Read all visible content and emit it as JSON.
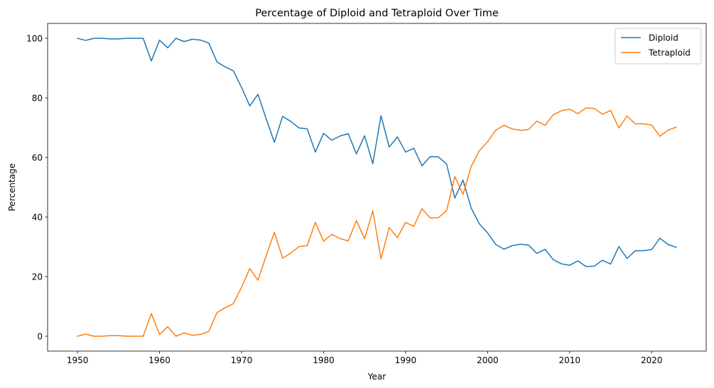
{
  "chart_data": {
    "type": "line",
    "title": "Percentage of Diploid and Tetraploid Over Time",
    "xlabel": "Year",
    "ylabel": "Percentage",
    "xlim": [
      1946.35,
      2026.65
    ],
    "ylim": [
      -5.0,
      105.0
    ],
    "xticks": [
      1950,
      1960,
      1970,
      1980,
      1990,
      2000,
      2010,
      2020
    ],
    "yticks": [
      0,
      20,
      40,
      60,
      80,
      100
    ],
    "grid": false,
    "legend": "top-right",
    "x": [
      1950,
      1951,
      1952,
      1953,
      1954,
      1955,
      1956,
      1957,
      1958,
      1959,
      1960,
      1961,
      1962,
      1963,
      1964,
      1965,
      1966,
      1967,
      1968,
      1969,
      1970,
      1971,
      1972,
      1973,
      1974,
      1975,
      1976,
      1977,
      1978,
      1979,
      1980,
      1981,
      1982,
      1983,
      1984,
      1985,
      1986,
      1987,
      1988,
      1989,
      1990,
      1991,
      1992,
      1993,
      1994,
      1995,
      1996,
      1997,
      1998,
      1999,
      2000,
      2001,
      2002,
      2003,
      2004,
      2005,
      2006,
      2007,
      2008,
      2009,
      2010,
      2011,
      2012,
      2013,
      2014,
      2015,
      2016,
      2017,
      2018,
      2019,
      2020,
      2021,
      2022,
      2023
    ],
    "series": [
      {
        "name": "Diploid",
        "color": "#1f77b4",
        "values": [
          100.0,
          99.3,
          100.0,
          100.0,
          99.8,
          99.8,
          100.0,
          100.0,
          100.0,
          92.4,
          99.4,
          96.8,
          100.0,
          98.9,
          99.7,
          99.4,
          98.4,
          92.1,
          90.4,
          89.1,
          83.5,
          77.3,
          81.2,
          73.0,
          65.1,
          73.8,
          72.1,
          69.9,
          69.6,
          61.8,
          68.1,
          65.8,
          67.2,
          68.0,
          61.2,
          67.3,
          57.9,
          74.0,
          63.5,
          66.9,
          61.8,
          63.1,
          57.2,
          60.3,
          60.2,
          57.8,
          46.4,
          52.4,
          43.0,
          37.7,
          34.7,
          30.8,
          29.2,
          30.4,
          30.9,
          30.6,
          27.8,
          29.2,
          25.7,
          24.3,
          23.8,
          25.3,
          23.4,
          23.5,
          25.5,
          24.2,
          30.1,
          26.1,
          28.7,
          28.7,
          29.1,
          32.9,
          30.8,
          29.8
        ]
      },
      {
        "name": "Tetraploid",
        "color": "#ff7f0e",
        "values": [
          0.0,
          0.7,
          0.0,
          0.0,
          0.2,
          0.2,
          0.0,
          0.0,
          0.0,
          7.6,
          0.6,
          3.2,
          0.0,
          1.1,
          0.3,
          0.6,
          1.6,
          7.9,
          9.6,
          10.9,
          16.5,
          22.7,
          18.8,
          27.0,
          34.9,
          26.2,
          27.9,
          30.1,
          30.4,
          38.2,
          31.9,
          34.2,
          32.8,
          32.0,
          38.8,
          32.7,
          42.1,
          26.0,
          36.5,
          33.1,
          38.2,
          36.9,
          42.8,
          39.7,
          39.8,
          42.2,
          53.6,
          47.6,
          57.0,
          62.3,
          65.3,
          69.2,
          70.8,
          69.6,
          69.1,
          69.4,
          72.2,
          70.8,
          74.3,
          75.7,
          76.2,
          74.7,
          76.6,
          76.5,
          74.5,
          75.8,
          69.9,
          73.9,
          71.3,
          71.3,
          70.9,
          67.1,
          69.2,
          70.2
        ]
      }
    ]
  }
}
